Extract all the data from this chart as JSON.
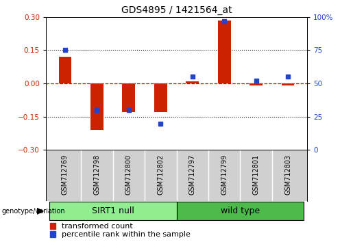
{
  "title": "GDS4895 / 1421564_at",
  "samples": [
    "GSM712769",
    "GSM712798",
    "GSM712800",
    "GSM712802",
    "GSM712797",
    "GSM712799",
    "GSM712801",
    "GSM712803"
  ],
  "transformed_count": [
    0.12,
    -0.21,
    -0.13,
    -0.13,
    0.01,
    0.285,
    -0.01,
    -0.01
  ],
  "percentile_rank_pct": [
    75,
    30,
    30,
    20,
    55,
    97,
    52,
    55
  ],
  "groups": [
    {
      "label": "SIRT1 null",
      "start": 0,
      "end": 3,
      "color": "#90ee90"
    },
    {
      "label": "wild type",
      "start": 4,
      "end": 7,
      "color": "#4cbb4c"
    }
  ],
  "ylim_left": [
    -0.3,
    0.3
  ],
  "yticks_left": [
    -0.3,
    -0.15,
    0,
    0.15,
    0.3
  ],
  "ylim_right": [
    0,
    100
  ],
  "yticks_right": [
    0,
    25,
    50,
    75,
    100
  ],
  "bar_width": 0.4,
  "red_color": "#cc2200",
  "blue_color": "#2244cc",
  "hline_color": "#cc0000",
  "dotted_color": "#222222",
  "title_fontsize": 10,
  "tick_fontsize": 7.5,
  "sample_fontsize": 7,
  "group_label_fontsize": 9,
  "legend_fontsize": 8
}
